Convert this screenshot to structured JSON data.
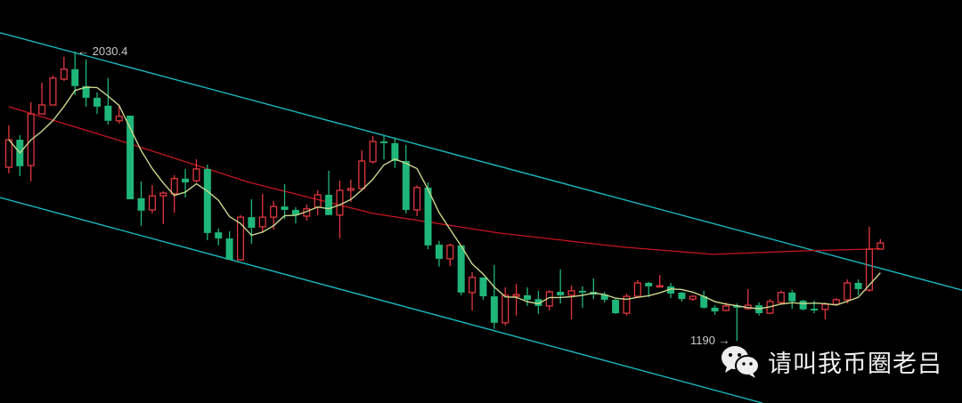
{
  "chart_data": {
    "type": "candlestick",
    "title": "",
    "xlabel": "",
    "ylabel": "",
    "ylim": [
      1009,
      2180
    ],
    "xlim": [
      -0.8,
      86.4
    ],
    "grid": false,
    "background": "#000000",
    "colors": {
      "up": "#e0383e",
      "down": "#1fb67a",
      "fast_ma": "#c9d98c",
      "slow_ma": "#c4161f",
      "channel": "#19b8c0"
    },
    "up_style": "hollow",
    "down_style": "filled",
    "candles": [
      [
        1694,
        1816,
        1676,
        1774
      ],
      [
        1774,
        1787,
        1668,
        1697
      ],
      [
        1699,
        1883,
        1653,
        1849
      ],
      [
        1849,
        1940,
        1849,
        1875
      ],
      [
        1875,
        1961,
        1875,
        1953
      ],
      [
        1950,
        2015,
        1945,
        1979
      ],
      [
        1979,
        2030.4,
        1904,
        1930
      ],
      [
        1930,
        2007,
        1870,
        1896
      ],
      [
        1896,
        1911,
        1849,
        1870
      ],
      [
        1873,
        1953,
        1818,
        1829
      ],
      [
        1829,
        1873,
        1821,
        1842
      ],
      [
        1844,
        1844,
        1601,
        1601
      ],
      [
        1604,
        1653,
        1524,
        1568
      ],
      [
        1570,
        1642,
        1560,
        1611
      ],
      [
        1611,
        1624,
        1529,
        1619
      ],
      [
        1617,
        1671,
        1562,
        1661
      ],
      [
        1661,
        1689,
        1606,
        1650
      ],
      [
        1655,
        1717,
        1650,
        1689
      ],
      [
        1689,
        1702,
        1482,
        1503
      ],
      [
        1505,
        1516,
        1467,
        1487
      ],
      [
        1487,
        1508,
        1425,
        1425
      ],
      [
        1425,
        1555,
        1423,
        1549
      ],
      [
        1549,
        1601,
        1472,
        1518
      ],
      [
        1521,
        1617,
        1503,
        1549
      ],
      [
        1549,
        1596,
        1513,
        1580
      ],
      [
        1580,
        1645,
        1544,
        1570
      ],
      [
        1570,
        1578,
        1531,
        1555
      ],
      [
        1552,
        1586,
        1539,
        1573
      ],
      [
        1578,
        1627,
        1555,
        1614
      ],
      [
        1614,
        1684,
        1555,
        1555
      ],
      [
        1555,
        1655,
        1487,
        1627
      ],
      [
        1627,
        1658,
        1593,
        1632
      ],
      [
        1632,
        1743,
        1632,
        1712
      ],
      [
        1710,
        1785,
        1705,
        1769
      ],
      [
        1769,
        1785,
        1717,
        1764
      ],
      [
        1764,
        1780,
        1692,
        1712
      ],
      [
        1712,
        1759,
        1560,
        1570
      ],
      [
        1570,
        1642,
        1552,
        1635
      ],
      [
        1635,
        1650,
        1456,
        1467
      ],
      [
        1469,
        1480,
        1405,
        1428
      ],
      [
        1428,
        1472,
        1407,
        1467
      ],
      [
        1467,
        1467,
        1322,
        1330
      ],
      [
        1330,
        1389,
        1278,
        1374
      ],
      [
        1374,
        1374,
        1309,
        1319
      ],
      [
        1319,
        1410,
        1224,
        1242
      ],
      [
        1242,
        1345,
        1234,
        1322
      ],
      [
        1319,
        1355,
        1263,
        1324
      ],
      [
        1322,
        1345,
        1291,
        1309
      ],
      [
        1311,
        1335,
        1268,
        1291
      ],
      [
        1291,
        1337,
        1278,
        1332
      ],
      [
        1332,
        1397,
        1298,
        1322
      ],
      [
        1322,
        1350,
        1252,
        1335
      ],
      [
        1335,
        1348,
        1286,
        1330
      ],
      [
        1332,
        1371,
        1311,
        1324
      ],
      [
        1324,
        1332,
        1301,
        1309
      ],
      [
        1309,
        1311,
        1268,
        1270
      ],
      [
        1270,
        1327,
        1263,
        1319
      ],
      [
        1319,
        1366,
        1317,
        1358
      ],
      [
        1358,
        1361,
        1317,
        1348
      ],
      [
        1348,
        1381,
        1345,
        1350
      ],
      [
        1348,
        1358,
        1314,
        1327
      ],
      [
        1330,
        1332,
        1304,
        1311
      ],
      [
        1311,
        1322,
        1306,
        1319
      ],
      [
        1319,
        1335,
        1283,
        1286
      ],
      [
        1286,
        1293,
        1265,
        1275
      ],
      [
        1278,
        1301,
        1275,
        1291
      ],
      [
        1291,
        1298,
        1190,
        1286
      ],
      [
        1283,
        1340,
        1281,
        1293
      ],
      [
        1293,
        1301,
        1263,
        1270
      ],
      [
        1270,
        1311,
        1268,
        1304
      ],
      [
        1301,
        1335,
        1296,
        1330
      ],
      [
        1330,
        1337,
        1283,
        1304
      ],
      [
        1306,
        1309,
        1278,
        1281
      ],
      [
        1283,
        1306,
        1270,
        1278
      ],
      [
        1281,
        1301,
        1252,
        1296
      ],
      [
        1296,
        1314,
        1296,
        1309
      ],
      [
        1309,
        1368,
        1298,
        1358
      ],
      [
        1358,
        1368,
        1322,
        1340
      ],
      [
        1337,
        1521,
        1332,
        1456
      ],
      [
        1456,
        1485,
        1456,
        1474
      ]
    ],
    "candle_fields": [
      "open",
      "high",
      "low",
      "close"
    ],
    "fast_ma_period": 5,
    "slow_ma": [
      [
        0,
        1870
      ],
      [
        10.5,
        1767
      ],
      [
        21.8,
        1650
      ],
      [
        33,
        1560
      ],
      [
        44.4,
        1503
      ],
      [
        55.7,
        1462
      ],
      [
        63.8,
        1441
      ],
      [
        71.9,
        1451
      ],
      [
        78,
        1456
      ],
      [
        79,
        1458
      ]
    ],
    "channel_upper": [
      [
        -0.8,
        2085
      ],
      [
        86.4,
        1337
      ]
    ],
    "channel_lower": [
      [
        -0.8,
        1606
      ],
      [
        68.3,
        1009
      ]
    ],
    "annotations": {
      "high_label": "← 2030.4",
      "low_label": "1190 →"
    }
  },
  "watermark": {
    "icon": "wechat-icon",
    "text": "请叫我币圈老吕"
  }
}
